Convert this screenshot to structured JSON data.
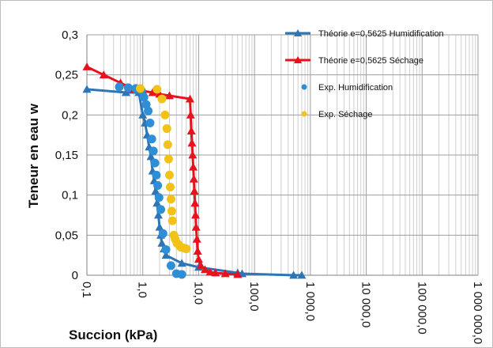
{
  "chart_data": {
    "type": "line",
    "xscale": "log",
    "xlim": [
      0.1,
      1000000
    ],
    "ylim": [
      0,
      0.3
    ],
    "grid": true,
    "legend_position": "top-right",
    "xlabel": "Succion (kPa)",
    "ylabel": "Teneur en eau w",
    "x_tick_labels": [
      "0,1",
      "1,0",
      "10,0",
      "100,0",
      "1 000,0",
      "10 000,0",
      "100 000,0",
      "1 000 000,0"
    ],
    "y_tick_labels": [
      "0",
      "0,05",
      "0,1",
      "0,15",
      "0,2",
      "0,25",
      "0,3"
    ],
    "series": [
      {
        "name": "Théorie e=0,5625 Humidification",
        "kind": "line-marker",
        "color": "#2e75b6",
        "marker": "triangle",
        "x": [
          0.1,
          0.5,
          0.85,
          1.0,
          1.1,
          1.2,
          1.3,
          1.4,
          1.5,
          1.6,
          1.7,
          1.8,
          1.9,
          2.0,
          2.1,
          2.2,
          2.4,
          2.6,
          5.0,
          10.0,
          50.0,
          60.0,
          500.0,
          700.0
        ],
        "y": [
          0.232,
          0.228,
          0.228,
          0.2,
          0.19,
          0.175,
          0.16,
          0.148,
          0.13,
          0.118,
          0.105,
          0.09,
          0.075,
          0.06,
          0.05,
          0.04,
          0.033,
          0.025,
          0.015,
          0.01,
          0.003,
          0.002,
          0.0,
          0.0
        ]
      },
      {
        "name": "Théorie e=0,5625 Séchage",
        "kind": "line-marker",
        "color": "#e8121e",
        "marker": "triangle",
        "x": [
          0.1,
          0.2,
          0.4,
          0.7,
          1.0,
          1.5,
          2.0,
          3.0,
          7.0,
          7.2,
          7.4,
          7.6,
          7.8,
          8.0,
          8.2,
          8.4,
          8.6,
          8.8,
          9.0,
          9.3,
          9.6,
          10.0,
          11.0,
          13.0,
          16.0,
          20.0,
          30.0,
          50.0
        ],
        "y": [
          0.26,
          0.25,
          0.24,
          0.232,
          0.23,
          0.228,
          0.226,
          0.224,
          0.22,
          0.2,
          0.18,
          0.165,
          0.15,
          0.135,
          0.12,
          0.105,
          0.09,
          0.075,
          0.06,
          0.045,
          0.03,
          0.02,
          0.012,
          0.007,
          0.004,
          0.003,
          0.002,
          0.001
        ]
      },
      {
        "name": "Exp. Humidification",
        "kind": "marker",
        "color": "#2e8fd6",
        "marker": "circle",
        "x": [
          0.38,
          0.55,
          0.75,
          0.95,
          1.05,
          1.15,
          1.25,
          1.35,
          1.45,
          1.55,
          1.65,
          1.75,
          1.85,
          1.95,
          2.1,
          2.3,
          2.6,
          3.2,
          4.0,
          5.0
        ],
        "y": [
          0.235,
          0.234,
          0.233,
          0.23,
          0.222,
          0.213,
          0.205,
          0.19,
          0.17,
          0.155,
          0.14,
          0.125,
          0.112,
          0.097,
          0.082,
          0.052,
          0.032,
          0.012,
          0.002,
          0.001
        ]
      },
      {
        "name": "Exp. Séchage",
        "kind": "marker",
        "color": "#f2c218",
        "marker": "circle",
        "x": [
          0.9,
          1.8,
          2.2,
          2.5,
          2.7,
          2.8,
          2.9,
          3.0,
          3.1,
          3.2,
          3.3,
          3.4,
          3.6,
          3.8,
          4.1,
          4.4,
          4.8,
          5.4,
          6.0
        ],
        "y": [
          0.233,
          0.232,
          0.22,
          0.2,
          0.183,
          0.163,
          0.145,
          0.125,
          0.11,
          0.095,
          0.08,
          0.068,
          0.05,
          0.045,
          0.04,
          0.038,
          0.035,
          0.034,
          0.033
        ]
      }
    ]
  }
}
